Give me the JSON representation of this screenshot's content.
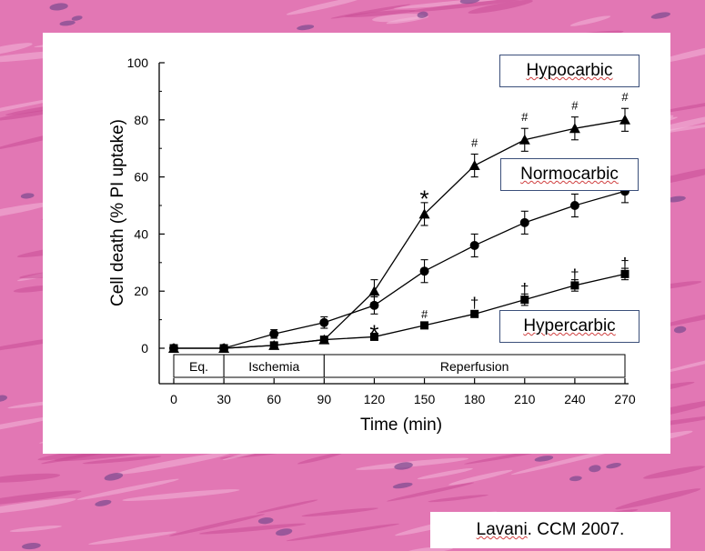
{
  "chart_data": {
    "type": "line",
    "xlabel": "Time (min)",
    "ylabel": "Cell death (% PI uptake)",
    "xlim": [
      0,
      270
    ],
    "ylim": [
      0,
      100
    ],
    "xticks": [
      0,
      30,
      60,
      90,
      120,
      150,
      180,
      210,
      240,
      270
    ],
    "xtick_labels": [
      "0",
      "30",
      "60",
      "90",
      "120",
      "150",
      "180",
      "210",
      "240",
      "270"
    ],
    "yticks": [
      0,
      20,
      40,
      60,
      80,
      100
    ],
    "ytick_labels": [
      "0",
      "20",
      "40",
      "60",
      "80",
      "100"
    ],
    "phases": [
      {
        "label": "Eq.",
        "start": 0,
        "end": 30
      },
      {
        "label": "Ischemia",
        "start": 30,
        "end": 90
      },
      {
        "label": "Reperfusion",
        "start": 90,
        "end": 270
      }
    ],
    "series": [
      {
        "name": "Hypocarbic",
        "marker": "triangle",
        "x": [
          0,
          30,
          60,
          90,
          120,
          150,
          180,
          210,
          240,
          270
        ],
        "y": [
          0,
          0,
          1,
          3,
          20,
          47,
          64,
          73,
          77,
          80
        ],
        "err": [
          1,
          1,
          1,
          1,
          4,
          4,
          4,
          4,
          4,
          4
        ]
      },
      {
        "name": "Normocarbic",
        "marker": "circle",
        "x": [
          0,
          30,
          60,
          90,
          120,
          150,
          180,
          210,
          240,
          270
        ],
        "y": [
          0,
          0,
          5,
          9,
          15,
          27,
          36,
          44,
          50,
          55
        ],
        "err": [
          1,
          1,
          1.5,
          2,
          3,
          4,
          4,
          4,
          4,
          4
        ]
      },
      {
        "name": "Hypercarbic",
        "marker": "square",
        "x": [
          0,
          30,
          60,
          90,
          120,
          150,
          180,
          210,
          240,
          270
        ],
        "y": [
          0,
          0,
          1,
          3,
          4,
          8,
          12,
          17,
          22,
          26
        ],
        "err": [
          1,
          1,
          1,
          1,
          1,
          1,
          1,
          2,
          2,
          2
        ]
      }
    ],
    "annotations": [
      {
        "text": "*",
        "x": 150,
        "y": 54,
        "size": "large"
      },
      {
        "text": "*",
        "x": 120,
        "y": 7,
        "size": "large"
      },
      {
        "text": "#",
        "x": 180,
        "y": 72,
        "size": "small"
      },
      {
        "text": "#",
        "x": 210,
        "y": 81,
        "size": "small"
      },
      {
        "text": "#",
        "x": 240,
        "y": 85,
        "size": "small"
      },
      {
        "text": "#",
        "x": 270,
        "y": 88,
        "size": "small"
      },
      {
        "text": "#",
        "x": 150,
        "y": 12,
        "size": "small"
      },
      {
        "text": "†",
        "x": 180,
        "y": 16,
        "size": "medium"
      },
      {
        "text": "†",
        "x": 210,
        "y": 21,
        "size": "medium"
      },
      {
        "text": "†",
        "x": 240,
        "y": 26,
        "size": "medium"
      },
      {
        "text": "†",
        "x": 270,
        "y": 30,
        "size": "medium"
      }
    ],
    "grid": false,
    "legend": "none"
  },
  "labels": {
    "hypocarbic": "Hypocarbic",
    "normocarbic": "Normocarbic",
    "hypercarbic": "Hypercarbic"
  },
  "citation": {
    "author": "Lavani",
    "rest": ". CCM 2007."
  },
  "colors": {
    "tissue_background": "#e277b4",
    "series": "#000000",
    "label_border": "#3b4f7a"
  }
}
